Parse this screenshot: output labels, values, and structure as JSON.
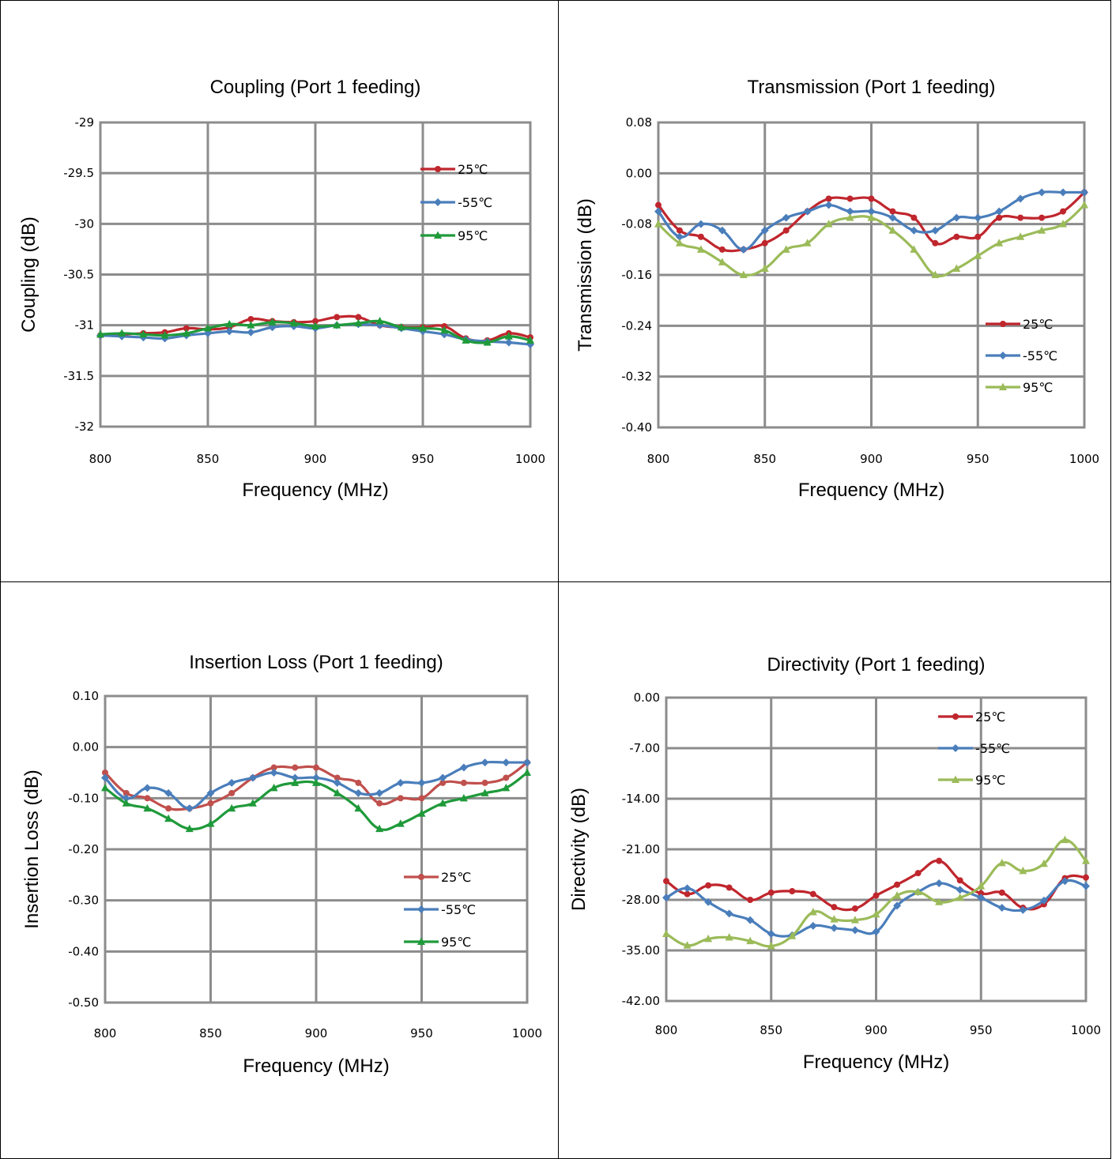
{
  "chart_data": [
    {
      "type": "line",
      "title": "Coupling (Port 1 feeding)",
      "xlabel": "Frequency (MHz)",
      "ylabel": "Coupling (dB)",
      "xlim": [
        800,
        1000
      ],
      "ylim": [
        -32,
        -29
      ],
      "xticks": [
        "800",
        "850",
        "900",
        "950",
        "1000"
      ],
      "yticks": [
        "-29",
        "-29.5",
        "-30",
        "-30.5",
        "-31",
        "-31.5",
        "-32"
      ],
      "grid": true,
      "legend": "top-right",
      "x": [
        800,
        810,
        820,
        830,
        840,
        850,
        860,
        870,
        880,
        890,
        900,
        910,
        920,
        930,
        940,
        950,
        960,
        970,
        980,
        990,
        1000
      ],
      "series": [
        {
          "name": "25℃",
          "color": "#c0262d",
          "marker": "circle",
          "values": [
            -31.1,
            -31.09,
            -31.08,
            -31.07,
            -31.03,
            -31.04,
            -31.02,
            -30.94,
            -30.96,
            -30.97,
            -30.96,
            -30.92,
            -30.92,
            -31.0,
            -31.02,
            -31.02,
            -31.01,
            -31.13,
            -31.15,
            -31.08,
            -31.12
          ]
        },
        {
          "name": "-55℃",
          "color": "#4a7ebb",
          "marker": "diamond",
          "values": [
            -31.1,
            -31.11,
            -31.12,
            -31.13,
            -31.1,
            -31.08,
            -31.06,
            -31.07,
            -31.02,
            -31.01,
            -31.03,
            -31.0,
            -30.99,
            -31.0,
            -31.03,
            -31.06,
            -31.09,
            -31.14,
            -31.16,
            -31.17,
            -31.19
          ]
        },
        {
          "name": "95℃",
          "color": "#1f9a3a",
          "marker": "triangle",
          "values": [
            -31.09,
            -31.08,
            -31.09,
            -31.1,
            -31.08,
            -31.03,
            -30.99,
            -31.0,
            -30.97,
            -30.98,
            -31.01,
            -31.0,
            -30.98,
            -30.96,
            -31.02,
            -31.03,
            -31.05,
            -31.15,
            -31.17,
            -31.11,
            -31.15
          ]
        }
      ]
    },
    {
      "type": "line",
      "title": "Transmission (Port 1 feeding)",
      "xlabel": "Frequency (MHz)",
      "ylabel": "Transmission (dB)",
      "xlim": [
        800,
        1000
      ],
      "ylim": [
        -0.4,
        0.08
      ],
      "xticks": [
        "800",
        "850",
        "900",
        "950",
        "1000"
      ],
      "yticks": [
        "0.08",
        "0.00",
        "-0.08",
        "-0.16",
        "-0.24",
        "-0.32",
        "-0.40"
      ],
      "grid": true,
      "legend": "bottom-right",
      "x": [
        800,
        810,
        820,
        830,
        840,
        850,
        860,
        870,
        880,
        890,
        900,
        910,
        920,
        930,
        940,
        950,
        960,
        970,
        980,
        990,
        1000
      ],
      "series": [
        {
          "name": "25℃",
          "color": "#c0262d",
          "marker": "circle",
          "values": [
            -0.05,
            -0.09,
            -0.1,
            -0.12,
            -0.12,
            -0.11,
            -0.09,
            -0.06,
            -0.04,
            -0.04,
            -0.04,
            -0.06,
            -0.07,
            -0.11,
            -0.1,
            -0.1,
            -0.07,
            -0.07,
            -0.07,
            -0.06,
            -0.03
          ]
        },
        {
          "name": "-55℃",
          "color": "#4a7ebb",
          "marker": "diamond",
          "values": [
            -0.06,
            -0.1,
            -0.08,
            -0.09,
            -0.12,
            -0.09,
            -0.07,
            -0.06,
            -0.05,
            -0.06,
            -0.06,
            -0.07,
            -0.09,
            -0.09,
            -0.07,
            -0.07,
            -0.06,
            -0.04,
            -0.03,
            -0.03,
            -0.03
          ]
        },
        {
          "name": "95℃",
          "color": "#9bbb59",
          "marker": "triangle",
          "values": [
            -0.08,
            -0.11,
            -0.12,
            -0.14,
            -0.16,
            -0.15,
            -0.12,
            -0.11,
            -0.08,
            -0.07,
            -0.07,
            -0.09,
            -0.12,
            -0.16,
            -0.15,
            -0.13,
            -0.11,
            -0.1,
            -0.09,
            -0.08,
            -0.05
          ]
        }
      ]
    },
    {
      "type": "line",
      "title": "Insertion Loss (Port 1 feeding)",
      "xlabel": "Frequency (MHz)",
      "ylabel": "Insertion Loss (dB)",
      "xlim": [
        800,
        1000
      ],
      "ylim": [
        -0.5,
        0.1
      ],
      "xticks": [
        "800",
        "850",
        "900",
        "950",
        "1000"
      ],
      "yticks": [
        "0.10",
        "0.00",
        "-0.10",
        "-0.20",
        "-0.30",
        "-0.40",
        "-0.50"
      ],
      "grid": true,
      "legend": "bottom-right",
      "x": [
        800,
        810,
        820,
        830,
        840,
        850,
        860,
        870,
        880,
        890,
        900,
        910,
        920,
        930,
        940,
        950,
        960,
        970,
        980,
        990,
        1000
      ],
      "series": [
        {
          "name": "25℃",
          "color": "#c0504d",
          "marker": "circle",
          "values": [
            -0.05,
            -0.09,
            -0.1,
            -0.12,
            -0.12,
            -0.11,
            -0.09,
            -0.06,
            -0.04,
            -0.04,
            -0.04,
            -0.06,
            -0.07,
            -0.11,
            -0.1,
            -0.1,
            -0.07,
            -0.07,
            -0.07,
            -0.06,
            -0.03
          ]
        },
        {
          "name": "-55℃",
          "color": "#4a7ebb",
          "marker": "diamond",
          "values": [
            -0.06,
            -0.1,
            -0.08,
            -0.09,
            -0.12,
            -0.09,
            -0.07,
            -0.06,
            -0.05,
            -0.06,
            -0.06,
            -0.07,
            -0.09,
            -0.09,
            -0.07,
            -0.07,
            -0.06,
            -0.04,
            -0.03,
            -0.03,
            -0.03
          ]
        },
        {
          "name": "95℃",
          "color": "#1f9a3a",
          "marker": "triangle",
          "values": [
            -0.08,
            -0.11,
            -0.12,
            -0.14,
            -0.16,
            -0.15,
            -0.12,
            -0.11,
            -0.08,
            -0.07,
            -0.07,
            -0.09,
            -0.12,
            -0.16,
            -0.15,
            -0.13,
            -0.11,
            -0.1,
            -0.09,
            -0.08,
            -0.05
          ]
        }
      ]
    },
    {
      "type": "line",
      "title": "Directivity (Port 1 feeding)",
      "xlabel": "Frequency (MHz)",
      "ylabel": "Directivity (dB)",
      "xlim": [
        800,
        1000
      ],
      "ylim": [
        -42.0,
        0.0
      ],
      "xticks": [
        "800",
        "850",
        "900",
        "950",
        "1000"
      ],
      "yticks": [
        "0.00",
        "-7.00",
        "-14.00",
        "-21.00",
        "-28.00",
        "-35.00",
        "-42.00"
      ],
      "grid": true,
      "legend": "top-right",
      "x": [
        800,
        810,
        820,
        830,
        840,
        850,
        860,
        870,
        880,
        890,
        900,
        910,
        920,
        930,
        940,
        950,
        960,
        970,
        980,
        990,
        1000
      ],
      "series": [
        {
          "name": "25℃",
          "color": "#c0262d",
          "marker": "circle",
          "values": [
            -25.4,
            -27.2,
            -26.0,
            -26.3,
            -28.0,
            -27.0,
            -26.8,
            -27.2,
            -29.0,
            -29.2,
            -27.4,
            -25.9,
            -24.3,
            -22.6,
            -25.3,
            -27.1,
            -27.0,
            -29.1,
            -28.6,
            -25.0,
            -24.9
          ]
        },
        {
          "name": "-55℃",
          "color": "#4a7ebb",
          "marker": "diamond",
          "values": [
            -27.7,
            -26.4,
            -28.3,
            -29.9,
            -30.8,
            -32.7,
            -32.9,
            -31.6,
            -31.9,
            -32.2,
            -32.4,
            -28.8,
            -26.9,
            -25.7,
            -26.6,
            -27.7,
            -29.1,
            -29.4,
            -28.1,
            -25.4,
            -26.1
          ]
        },
        {
          "name": "95℃",
          "color": "#9bbb59",
          "marker": "triangle",
          "values": [
            -32.7,
            -34.3,
            -33.4,
            -33.2,
            -33.7,
            -34.4,
            -33.0,
            -29.7,
            -30.7,
            -30.8,
            -30.0,
            -27.4,
            -26.9,
            -28.3,
            -27.7,
            -26.1,
            -22.9,
            -24.0,
            -23.0,
            -19.7,
            -22.6
          ]
        }
      ]
    }
  ]
}
